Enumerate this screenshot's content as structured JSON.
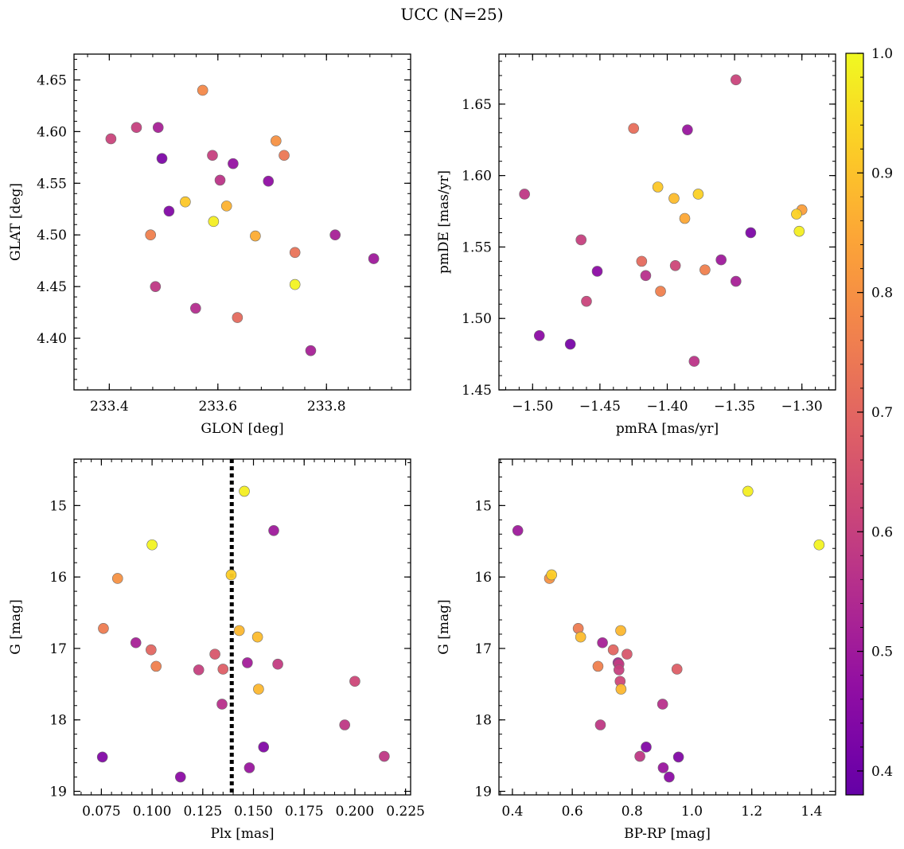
{
  "title": "UCC (N=25)",
  "colorbar": {
    "min": 0.38,
    "max": 1.0,
    "ticks": [
      0.4,
      0.5,
      0.6,
      0.7,
      0.8,
      0.9,
      1.0
    ],
    "tick_labels": [
      "0.4",
      "0.5",
      "0.6",
      "0.7",
      "0.8",
      "0.9",
      "1.0"
    ],
    "colormap": "plasma"
  },
  "chart_data": [
    {
      "type": "scatter",
      "xlabel": "GLON [deg]",
      "ylabel": "GLAT [deg]",
      "xlim": [
        233.335,
        233.955
      ],
      "ylim": [
        4.35,
        4.675
      ],
      "xticks": [
        233.4,
        233.6,
        233.8
      ],
      "xtick_labels": [
        "233.4",
        "233.6",
        "233.8"
      ],
      "yticks": [
        4.4,
        4.45,
        4.5,
        4.55,
        4.6,
        4.65
      ],
      "ytick_labels": [
        "4.40",
        "4.45",
        "4.50",
        "4.55",
        "4.60",
        "4.65"
      ],
      "y_inverted": false,
      "points": [
        {
          "x": 233.572,
          "y": 4.64,
          "c": 0.78
        },
        {
          "x": 233.403,
          "y": 4.593,
          "c": 0.61
        },
        {
          "x": 233.45,
          "y": 4.604,
          "c": 0.6
        },
        {
          "x": 233.49,
          "y": 4.604,
          "c": 0.52
        },
        {
          "x": 233.707,
          "y": 4.591,
          "c": 0.8
        },
        {
          "x": 233.59,
          "y": 4.577,
          "c": 0.6
        },
        {
          "x": 233.722,
          "y": 4.577,
          "c": 0.74
        },
        {
          "x": 233.497,
          "y": 4.574,
          "c": 0.43
        },
        {
          "x": 233.628,
          "y": 4.569,
          "c": 0.48
        },
        {
          "x": 233.604,
          "y": 4.553,
          "c": 0.57
        },
        {
          "x": 233.693,
          "y": 4.552,
          "c": 0.47
        },
        {
          "x": 233.54,
          "y": 4.532,
          "c": 0.91
        },
        {
          "x": 233.616,
          "y": 4.528,
          "c": 0.87
        },
        {
          "x": 233.51,
          "y": 4.523,
          "c": 0.44
        },
        {
          "x": 233.592,
          "y": 4.513,
          "c": 0.98
        },
        {
          "x": 233.476,
          "y": 4.5,
          "c": 0.76
        },
        {
          "x": 233.816,
          "y": 4.5,
          "c": 0.52
        },
        {
          "x": 233.669,
          "y": 4.499,
          "c": 0.86
        },
        {
          "x": 233.742,
          "y": 4.483,
          "c": 0.73
        },
        {
          "x": 233.887,
          "y": 4.477,
          "c": 0.5
        },
        {
          "x": 233.742,
          "y": 4.452,
          "c": 0.99
        },
        {
          "x": 233.485,
          "y": 4.45,
          "c": 0.58
        },
        {
          "x": 233.559,
          "y": 4.429,
          "c": 0.55
        },
        {
          "x": 233.636,
          "y": 4.42,
          "c": 0.71
        },
        {
          "x": 233.771,
          "y": 4.388,
          "c": 0.52
        }
      ]
    },
    {
      "type": "scatter",
      "xlabel": "pmRA [mas/yr]",
      "ylabel": "pmDE [mas/yr]",
      "xlim": [
        -1.525,
        -1.275
      ],
      "ylim": [
        1.45,
        1.685
      ],
      "xticks": [
        -1.5,
        -1.45,
        -1.4,
        -1.35,
        -1.3
      ],
      "xtick_labels": [
        "−1.50",
        "−1.45",
        "−1.40",
        "−1.35",
        "−1.30"
      ],
      "yticks": [
        1.45,
        1.5,
        1.55,
        1.6,
        1.65
      ],
      "ytick_labels": [
        "1.45",
        "1.50",
        "1.55",
        "1.60",
        "1.65"
      ],
      "y_inverted": false,
      "points": [
        {
          "x": -1.349,
          "y": 1.667,
          "c": 0.61
        },
        {
          "x": -1.425,
          "y": 1.633,
          "c": 0.72
        },
        {
          "x": -1.385,
          "y": 1.632,
          "c": 0.49
        },
        {
          "x": -1.407,
          "y": 1.592,
          "c": 0.91
        },
        {
          "x": -1.377,
          "y": 1.587,
          "c": 0.93
        },
        {
          "x": -1.506,
          "y": 1.587,
          "c": 0.58
        },
        {
          "x": -1.395,
          "y": 1.584,
          "c": 0.89
        },
        {
          "x": -1.3,
          "y": 1.576,
          "c": 0.83
        },
        {
          "x": -1.304,
          "y": 1.573,
          "c": 0.93
        },
        {
          "x": -1.387,
          "y": 1.57,
          "c": 0.85
        },
        {
          "x": -1.302,
          "y": 1.561,
          "c": 0.98
        },
        {
          "x": -1.338,
          "y": 1.56,
          "c": 0.43
        },
        {
          "x": -1.464,
          "y": 1.555,
          "c": 0.6
        },
        {
          "x": -1.36,
          "y": 1.541,
          "c": 0.5
        },
        {
          "x": -1.419,
          "y": 1.54,
          "c": 0.71
        },
        {
          "x": -1.394,
          "y": 1.537,
          "c": 0.62
        },
        {
          "x": -1.372,
          "y": 1.534,
          "c": 0.76
        },
        {
          "x": -1.452,
          "y": 1.533,
          "c": 0.46
        },
        {
          "x": -1.416,
          "y": 1.53,
          "c": 0.56
        },
        {
          "x": -1.349,
          "y": 1.526,
          "c": 0.52
        },
        {
          "x": -1.405,
          "y": 1.519,
          "c": 0.76
        },
        {
          "x": -1.46,
          "y": 1.512,
          "c": 0.61
        },
        {
          "x": -1.495,
          "y": 1.488,
          "c": 0.46
        },
        {
          "x": -1.472,
          "y": 1.482,
          "c": 0.42
        },
        {
          "x": -1.38,
          "y": 1.47,
          "c": 0.57
        }
      ]
    },
    {
      "type": "scatter",
      "xlabel": "Plx [mas]",
      "ylabel": "G [mag]",
      "xlim": [
        0.0615,
        0.2275
      ],
      "ylim": [
        14.35,
        19.05
      ],
      "xticks": [
        0.075,
        0.1,
        0.125,
        0.15,
        0.175,
        0.2,
        0.225
      ],
      "xtick_labels": [
        "0.075",
        "0.100",
        "0.125",
        "0.150",
        "0.175",
        "0.200",
        "0.225"
      ],
      "yticks": [
        15,
        16,
        17,
        18,
        19
      ],
      "ytick_labels": [
        "15",
        "16",
        "17",
        "18",
        "19"
      ],
      "y_inverted": true,
      "vline": 0.1393,
      "points": [
        {
          "x": 0.1455,
          "y": 14.8,
          "c": 0.98
        },
        {
          "x": 0.16,
          "y": 15.35,
          "c": 0.5
        },
        {
          "x": 0.1,
          "y": 15.55,
          "c": 0.99
        },
        {
          "x": 0.083,
          "y": 16.02,
          "c": 0.8
        },
        {
          "x": 0.139,
          "y": 15.97,
          "c": 0.92
        },
        {
          "x": 0.076,
          "y": 16.72,
          "c": 0.75
        },
        {
          "x": 0.143,
          "y": 16.75,
          "c": 0.88
        },
        {
          "x": 0.152,
          "y": 16.84,
          "c": 0.89
        },
        {
          "x": 0.092,
          "y": 16.92,
          "c": 0.52
        },
        {
          "x": 0.0995,
          "y": 17.02,
          "c": 0.7
        },
        {
          "x": 0.131,
          "y": 17.08,
          "c": 0.66
        },
        {
          "x": 0.147,
          "y": 17.2,
          "c": 0.51
        },
        {
          "x": 0.162,
          "y": 17.22,
          "c": 0.59
        },
        {
          "x": 0.102,
          "y": 17.25,
          "c": 0.76
        },
        {
          "x": 0.123,
          "y": 17.3,
          "c": 0.6
        },
        {
          "x": 0.135,
          "y": 17.29,
          "c": 0.68
        },
        {
          "x": 0.2,
          "y": 17.46,
          "c": 0.62
        },
        {
          "x": 0.1525,
          "y": 17.57,
          "c": 0.88
        },
        {
          "x": 0.1345,
          "y": 17.78,
          "c": 0.56
        },
        {
          "x": 0.195,
          "y": 18.07,
          "c": 0.58
        },
        {
          "x": 0.155,
          "y": 18.38,
          "c": 0.44
        },
        {
          "x": 0.0755,
          "y": 18.52,
          "c": 0.44
        },
        {
          "x": 0.2145,
          "y": 18.51,
          "c": 0.58
        },
        {
          "x": 0.148,
          "y": 18.67,
          "c": 0.49
        },
        {
          "x": 0.114,
          "y": 18.8,
          "c": 0.46
        }
      ]
    },
    {
      "type": "scatter",
      "xlabel": "BP-RP [mag]",
      "ylabel": "G [mag]",
      "xlim": [
        0.355,
        1.48
      ],
      "ylim": [
        14.35,
        19.05
      ],
      "xticks": [
        0.4,
        0.6,
        0.8,
        1.0,
        1.2,
        1.4
      ],
      "xtick_labels": [
        "0.4",
        "0.6",
        "0.8",
        "1.0",
        "1.2",
        "1.4"
      ],
      "yticks": [
        15,
        16,
        17,
        18,
        19
      ],
      "ytick_labels": [
        "15",
        "16",
        "17",
        "18",
        "19"
      ],
      "y_inverted": true,
      "points": [
        {
          "x": 1.187,
          "y": 14.8,
          "c": 0.98
        },
        {
          "x": 0.418,
          "y": 15.35,
          "c": 0.5
        },
        {
          "x": 1.425,
          "y": 15.55,
          "c": 0.99
        },
        {
          "x": 0.524,
          "y": 16.02,
          "c": 0.8
        },
        {
          "x": 0.531,
          "y": 15.97,
          "c": 0.92
        },
        {
          "x": 0.62,
          "y": 16.72,
          "c": 0.75
        },
        {
          "x": 0.762,
          "y": 16.75,
          "c": 0.88
        },
        {
          "x": 0.628,
          "y": 16.84,
          "c": 0.89
        },
        {
          "x": 0.701,
          "y": 16.92,
          "c": 0.52
        },
        {
          "x": 0.737,
          "y": 17.02,
          "c": 0.7
        },
        {
          "x": 0.783,
          "y": 17.08,
          "c": 0.66
        },
        {
          "x": 0.753,
          "y": 17.2,
          "c": 0.51
        },
        {
          "x": 0.756,
          "y": 17.22,
          "c": 0.59
        },
        {
          "x": 0.686,
          "y": 17.25,
          "c": 0.76
        },
        {
          "x": 0.756,
          "y": 17.3,
          "c": 0.6
        },
        {
          "x": 0.95,
          "y": 17.29,
          "c": 0.68
        },
        {
          "x": 0.76,
          "y": 17.46,
          "c": 0.62
        },
        {
          "x": 0.763,
          "y": 17.57,
          "c": 0.88
        },
        {
          "x": 0.902,
          "y": 17.78,
          "c": 0.56
        },
        {
          "x": 0.694,
          "y": 18.07,
          "c": 0.58
        },
        {
          "x": 0.847,
          "y": 18.38,
          "c": 0.44
        },
        {
          "x": 0.955,
          "y": 18.52,
          "c": 0.44
        },
        {
          "x": 0.826,
          "y": 18.51,
          "c": 0.58
        },
        {
          "x": 0.904,
          "y": 18.67,
          "c": 0.49
        },
        {
          "x": 0.924,
          "y": 18.8,
          "c": 0.46
        }
      ]
    }
  ]
}
